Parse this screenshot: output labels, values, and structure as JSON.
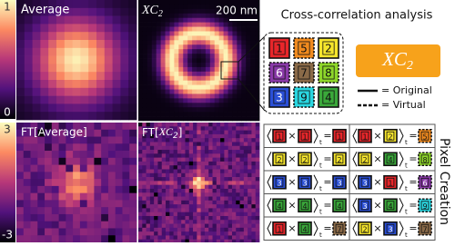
{
  "panels": {
    "average": {
      "title": "Average"
    },
    "xc": {
      "main": "XC",
      "sub": "2"
    },
    "ft_average": {
      "title": "FT[Average]"
    },
    "ft_xc": {
      "prefix": "FT[",
      "main": "XC",
      "sub": "2",
      "suffix": "]"
    },
    "scale_bar": "200 nm",
    "top_colorbar": {
      "max": "1",
      "min": "0"
    },
    "bottom_colorbar": {
      "max": "3",
      "min": "-3"
    }
  },
  "analysis": {
    "title": "Cross-correlation analysis",
    "result": {
      "main": "XC",
      "sub": "2"
    },
    "legend": {
      "original": "= Original",
      "virtual": "= Virtual"
    },
    "pixel_grid": [
      [
        "1",
        "5",
        "2"
      ],
      [
        "6",
        "7",
        "8"
      ],
      [
        "3",
        "9",
        "4"
      ]
    ]
  },
  "pixel_styles": {
    "1": {
      "color": "#e8262a",
      "dashed": false
    },
    "2": {
      "color": "#f5e52c",
      "dashed": false
    },
    "3": {
      "color": "#2a4fd6",
      "dashed": false
    },
    "4": {
      "color": "#3aa83a",
      "dashed": false
    },
    "5": {
      "color": "#f08a1e",
      "dashed": true
    },
    "6": {
      "color": "#8a3aa8",
      "dashed": true
    },
    "7": {
      "color": "#8a6a48",
      "dashed": true
    },
    "8": {
      "color": "#8ed62a",
      "dashed": true
    },
    "9": {
      "color": "#2ad6e0",
      "dashed": true
    }
  },
  "table": {
    "title": "Pixel Creation",
    "times": "×",
    "equals": "=",
    "subscript": "t",
    "rows": [
      [
        {
          "a": "1",
          "b": "1",
          "c": "1"
        },
        {
          "a": "1",
          "b": "2",
          "c": "5"
        }
      ],
      [
        {
          "a": "2",
          "b": "2",
          "c": "2"
        },
        {
          "a": "2",
          "b": "4",
          "c": "8"
        }
      ],
      [
        {
          "a": "3",
          "b": "3",
          "c": "3"
        },
        {
          "a": "3",
          "b": "1",
          "c": "6"
        }
      ],
      [
        {
          "a": "4",
          "b": "4",
          "c": "4"
        },
        {
          "a": "3",
          "b": "4",
          "c": "9"
        }
      ],
      [
        {
          "a": "1",
          "b": "4",
          "c": "7"
        },
        {
          "a": "2",
          "b": "3",
          "c": "7"
        }
      ]
    ]
  }
}
